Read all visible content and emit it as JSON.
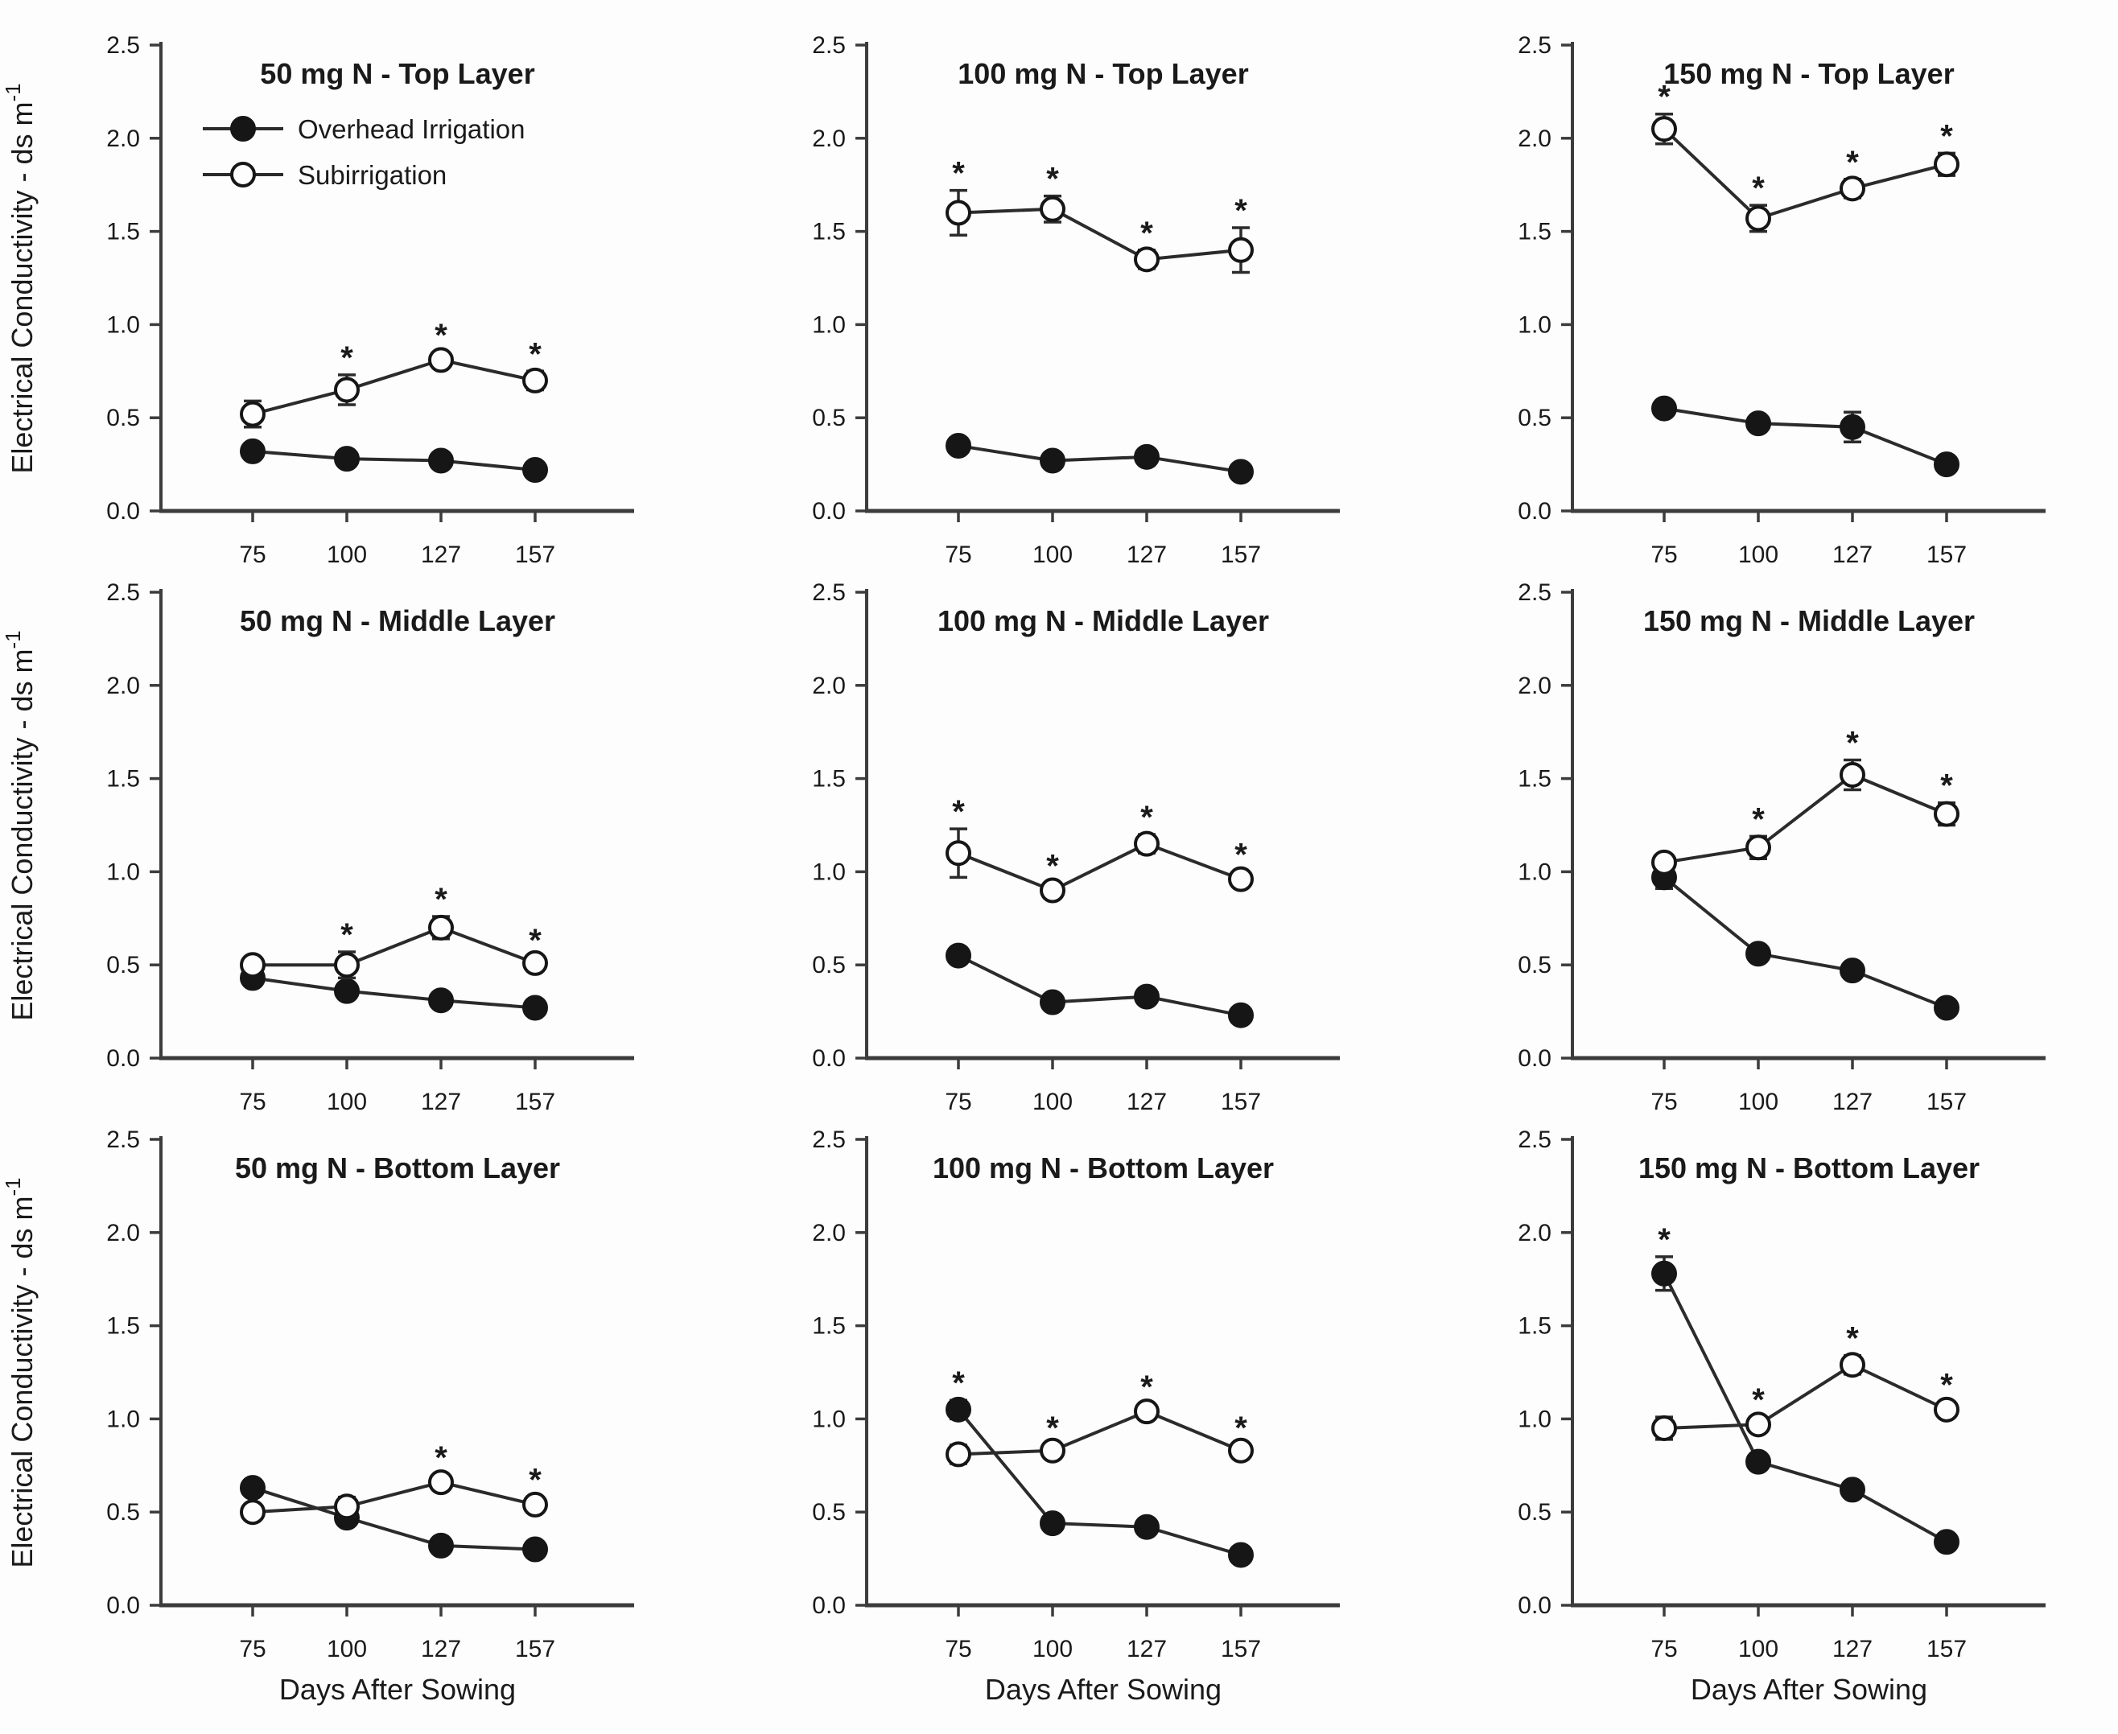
{
  "figure": {
    "y_axis_label_main": "Electrical Conductivity - ds m",
    "y_axis_label_superscript": "-1",
    "x_axis_label": "Days After Sowing",
    "significance_marker": "*",
    "y_ticks": [
      "0.0",
      "0.5",
      "1.0",
      "1.5",
      "2.0",
      "2.5"
    ],
    "x_ticks": [
      "75",
      "100",
      "127",
      "157"
    ],
    "legend": [
      {
        "label": "Overhead Irrigation",
        "marker": "filled-circle"
      },
      {
        "label": "Subirrigation",
        "marker": "open-circle"
      }
    ],
    "colors": {
      "ink": "#1a1a1a",
      "axis": "#3c3c3c",
      "line": "#2b2b2b",
      "marker_fill": "#161616",
      "open_marker_fill": "#fdfdfd",
      "background": "#fdfdfd"
    }
  },
  "chart_data": [
    {
      "type": "line",
      "title": "50 mg N - Top Layer",
      "xlabel": "Days After Sowing",
      "ylabel": "Electrical Conductivity - ds m-1",
      "x": [
        75,
        100,
        127,
        157
      ],
      "ylim": [
        0,
        2.5
      ],
      "grid": false,
      "show_legend": true,
      "series": [
        {
          "name": "Overhead Irrigation",
          "marker": "filled-circle",
          "values": [
            0.32,
            0.28,
            0.27,
            0.22
          ],
          "errors": [
            0,
            0,
            0,
            0
          ]
        },
        {
          "name": "Subirrigation",
          "marker": "open-circle",
          "values": [
            0.52,
            0.65,
            0.81,
            0.7
          ],
          "errors": [
            0.07,
            0.08,
            0.04,
            0.05
          ]
        }
      ],
      "significant_days": [
        100,
        127,
        157
      ]
    },
    {
      "type": "line",
      "title": "100 mg N - Top Layer",
      "x": [
        75,
        100,
        127,
        157
      ],
      "ylim": [
        0,
        2.5
      ],
      "grid": false,
      "show_legend": false,
      "series": [
        {
          "name": "Overhead Irrigation",
          "marker": "filled-circle",
          "values": [
            0.35,
            0.27,
            0.29,
            0.21
          ],
          "errors": [
            0,
            0,
            0,
            0
          ]
        },
        {
          "name": "Subirrigation",
          "marker": "open-circle",
          "values": [
            1.6,
            1.62,
            1.35,
            1.4
          ],
          "errors": [
            0.12,
            0.07,
            0.05,
            0.12
          ]
        }
      ],
      "significant_days": [
        75,
        100,
        127,
        157
      ]
    },
    {
      "type": "line",
      "title": "150 mg N - Top Layer",
      "x": [
        75,
        100,
        127,
        157
      ],
      "ylim": [
        0,
        2.5
      ],
      "grid": false,
      "show_legend": false,
      "series": [
        {
          "name": "Overhead Irrigation",
          "marker": "filled-circle",
          "values": [
            0.55,
            0.47,
            0.45,
            0.25
          ],
          "errors": [
            0,
            0,
            0.08,
            0
          ]
        },
        {
          "name": "Subirrigation",
          "marker": "open-circle",
          "values": [
            2.05,
            1.57,
            1.73,
            1.86
          ],
          "errors": [
            0.08,
            0.07,
            0.05,
            0.06
          ]
        }
      ],
      "significant_days": [
        75,
        100,
        127,
        157
      ]
    },
    {
      "type": "line",
      "title": "50 mg N - Middle Layer",
      "x": [
        75,
        100,
        127,
        157
      ],
      "ylim": [
        0,
        2.5
      ],
      "grid": false,
      "show_legend": false,
      "series": [
        {
          "name": "Overhead Irrigation",
          "marker": "filled-circle",
          "values": [
            0.43,
            0.36,
            0.31,
            0.27
          ],
          "errors": [
            0,
            0,
            0,
            0
          ]
        },
        {
          "name": "Subirrigation",
          "marker": "open-circle",
          "values": [
            0.5,
            0.5,
            0.7,
            0.51
          ],
          "errors": [
            0.03,
            0.07,
            0.06,
            0.03
          ]
        }
      ],
      "significant_days": [
        100,
        127,
        157
      ]
    },
    {
      "type": "line",
      "title": "100 mg N - Middle Layer",
      "x": [
        75,
        100,
        127,
        157
      ],
      "ylim": [
        0,
        2.5
      ],
      "grid": false,
      "show_legend": false,
      "series": [
        {
          "name": "Overhead Irrigation",
          "marker": "filled-circle",
          "values": [
            0.55,
            0.3,
            0.33,
            0.23
          ],
          "errors": [
            0,
            0,
            0,
            0
          ]
        },
        {
          "name": "Subirrigation",
          "marker": "open-circle",
          "values": [
            1.1,
            0.9,
            1.15,
            0.96
          ],
          "errors": [
            0.13,
            0.04,
            0.05,
            0.04
          ]
        }
      ],
      "significant_days": [
        75,
        100,
        127,
        157
      ]
    },
    {
      "type": "line",
      "title": "150 mg N - Middle Layer",
      "x": [
        75,
        100,
        127,
        157
      ],
      "ylim": [
        0,
        2.5
      ],
      "grid": false,
      "show_legend": false,
      "series": [
        {
          "name": "Overhead Irrigation",
          "marker": "filled-circle",
          "values": [
            0.97,
            0.56,
            0.47,
            0.27
          ],
          "errors": [
            0.06,
            0,
            0,
            0
          ]
        },
        {
          "name": "Subirrigation",
          "marker": "open-circle",
          "values": [
            1.05,
            1.13,
            1.52,
            1.31
          ],
          "errors": [
            0.04,
            0.06,
            0.08,
            0.06
          ]
        }
      ],
      "significant_days": [
        100,
        127,
        157
      ]
    },
    {
      "type": "line",
      "title": "50 mg N - Bottom Layer",
      "x": [
        75,
        100,
        127,
        157
      ],
      "ylim": [
        0,
        2.5
      ],
      "grid": false,
      "show_legend": false,
      "series": [
        {
          "name": "Overhead Irrigation",
          "marker": "filled-circle",
          "values": [
            0.63,
            0.47,
            0.32,
            0.3
          ],
          "errors": [
            0,
            0,
            0,
            0
          ]
        },
        {
          "name": "Subirrigation",
          "marker": "open-circle",
          "values": [
            0.5,
            0.53,
            0.66,
            0.54
          ],
          "errors": [
            0.04,
            0.05,
            0.04,
            0.04
          ]
        }
      ],
      "significant_days": [
        127,
        157
      ]
    },
    {
      "type": "line",
      "title": "100 mg N - Bottom Layer",
      "x": [
        75,
        100,
        127,
        157
      ],
      "ylim": [
        0,
        2.5
      ],
      "grid": false,
      "show_legend": false,
      "series": [
        {
          "name": "Overhead Irrigation",
          "marker": "filled-circle",
          "values": [
            1.05,
            0.44,
            0.42,
            0.27
          ],
          "errors": [
            0.05,
            0.03,
            0.04,
            0
          ]
        },
        {
          "name": "Subirrigation",
          "marker": "open-circle",
          "values": [
            0.81,
            0.83,
            1.04,
            0.83
          ],
          "errors": [
            0.05,
            0.03,
            0.04,
            0.03
          ]
        }
      ],
      "significant_days": [
        75,
        100,
        127,
        157
      ]
    },
    {
      "type": "line",
      "title": "150 mg N - Bottom Layer",
      "x": [
        75,
        100,
        127,
        157
      ],
      "ylim": [
        0,
        2.5
      ],
      "grid": false,
      "show_legend": false,
      "series": [
        {
          "name": "Overhead Irrigation",
          "marker": "filled-circle",
          "values": [
            1.78,
            0.77,
            0.62,
            0.34
          ],
          "errors": [
            0.09,
            0.04,
            0.04,
            0
          ]
        },
        {
          "name": "Subirrigation",
          "marker": "open-circle",
          "values": [
            0.95,
            0.97,
            1.29,
            1.05
          ],
          "errors": [
            0.06,
            0.04,
            0.05,
            0.04
          ]
        }
      ],
      "significant_days": [
        75,
        100,
        127,
        157
      ]
    }
  ]
}
